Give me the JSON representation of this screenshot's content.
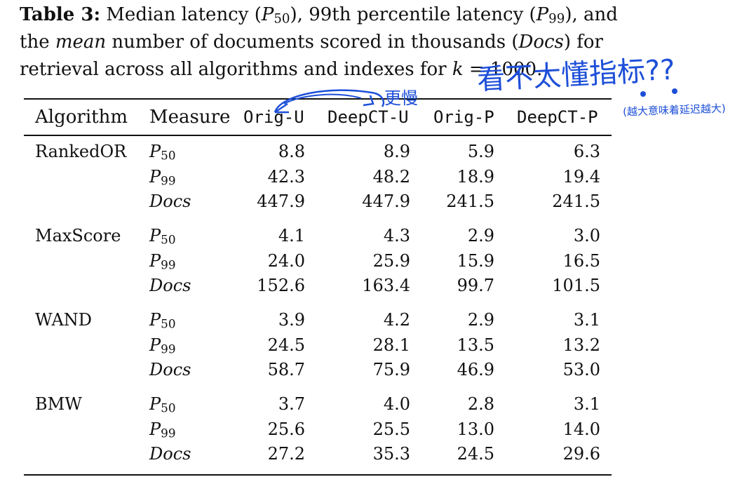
{
  "caption": {
    "label": "Table 3:",
    "part1": " Median latency (",
    "p50_sym": "P",
    "p50_sub": "50",
    "part2": "), 99th percentile latency (",
    "p99_sym": "P",
    "p99_sub": "99",
    "part3": "), and the ",
    "mean_word": "mean",
    "part4": " number of documents scored in thousands (",
    "docs_word": "Docs",
    "part5": ") for retrieval across all algorithms and indexes for ",
    "k_sym": "k",
    "part6": " = 1000."
  },
  "headers": [
    "Algorithm",
    "Measure",
    "Orig-U",
    "DeepCT-U",
    "Orig-P",
    "DeepCT-P"
  ],
  "measures": [
    {
      "sym": "P",
      "sub": "50"
    },
    {
      "sym": "P",
      "sub": "99"
    },
    {
      "sym": "Docs",
      "sub": ""
    }
  ],
  "rows": [
    {
      "algorithm": "RankedOR",
      "values": [
        [
          "8.8",
          "8.9",
          "5.9",
          "6.3"
        ],
        [
          "42.3",
          "48.2",
          "18.9",
          "19.4"
        ],
        [
          "447.9",
          "447.9",
          "241.5",
          "241.5"
        ]
      ]
    },
    {
      "algorithm": "MaxScore",
      "values": [
        [
          "4.1",
          "4.3",
          "2.9",
          "3.0"
        ],
        [
          "24.0",
          "25.9",
          "15.9",
          "16.5"
        ],
        [
          "152.6",
          "163.4",
          "99.7",
          "101.5"
        ]
      ]
    },
    {
      "algorithm": "WAND",
      "values": [
        [
          "3.9",
          "4.2",
          "2.9",
          "3.1"
        ],
        [
          "24.5",
          "28.1",
          "13.5",
          "13.2"
        ],
        [
          "58.7",
          "75.9",
          "46.9",
          "53.0"
        ]
      ]
    },
    {
      "algorithm": "BMW",
      "values": [
        [
          "3.7",
          "4.0",
          "2.8",
          "3.1"
        ],
        [
          "25.6",
          "25.5",
          "13.0",
          "14.0"
        ],
        [
          "27.2",
          "35.3",
          "24.5",
          "29.6"
        ]
      ]
    }
  ],
  "annotations": {
    "main_note": "看不太懂指标??",
    "arrow_note": "更慢",
    "side_note": "(越大意味着延迟越大)",
    "ink_color": "#1d4fd8"
  }
}
